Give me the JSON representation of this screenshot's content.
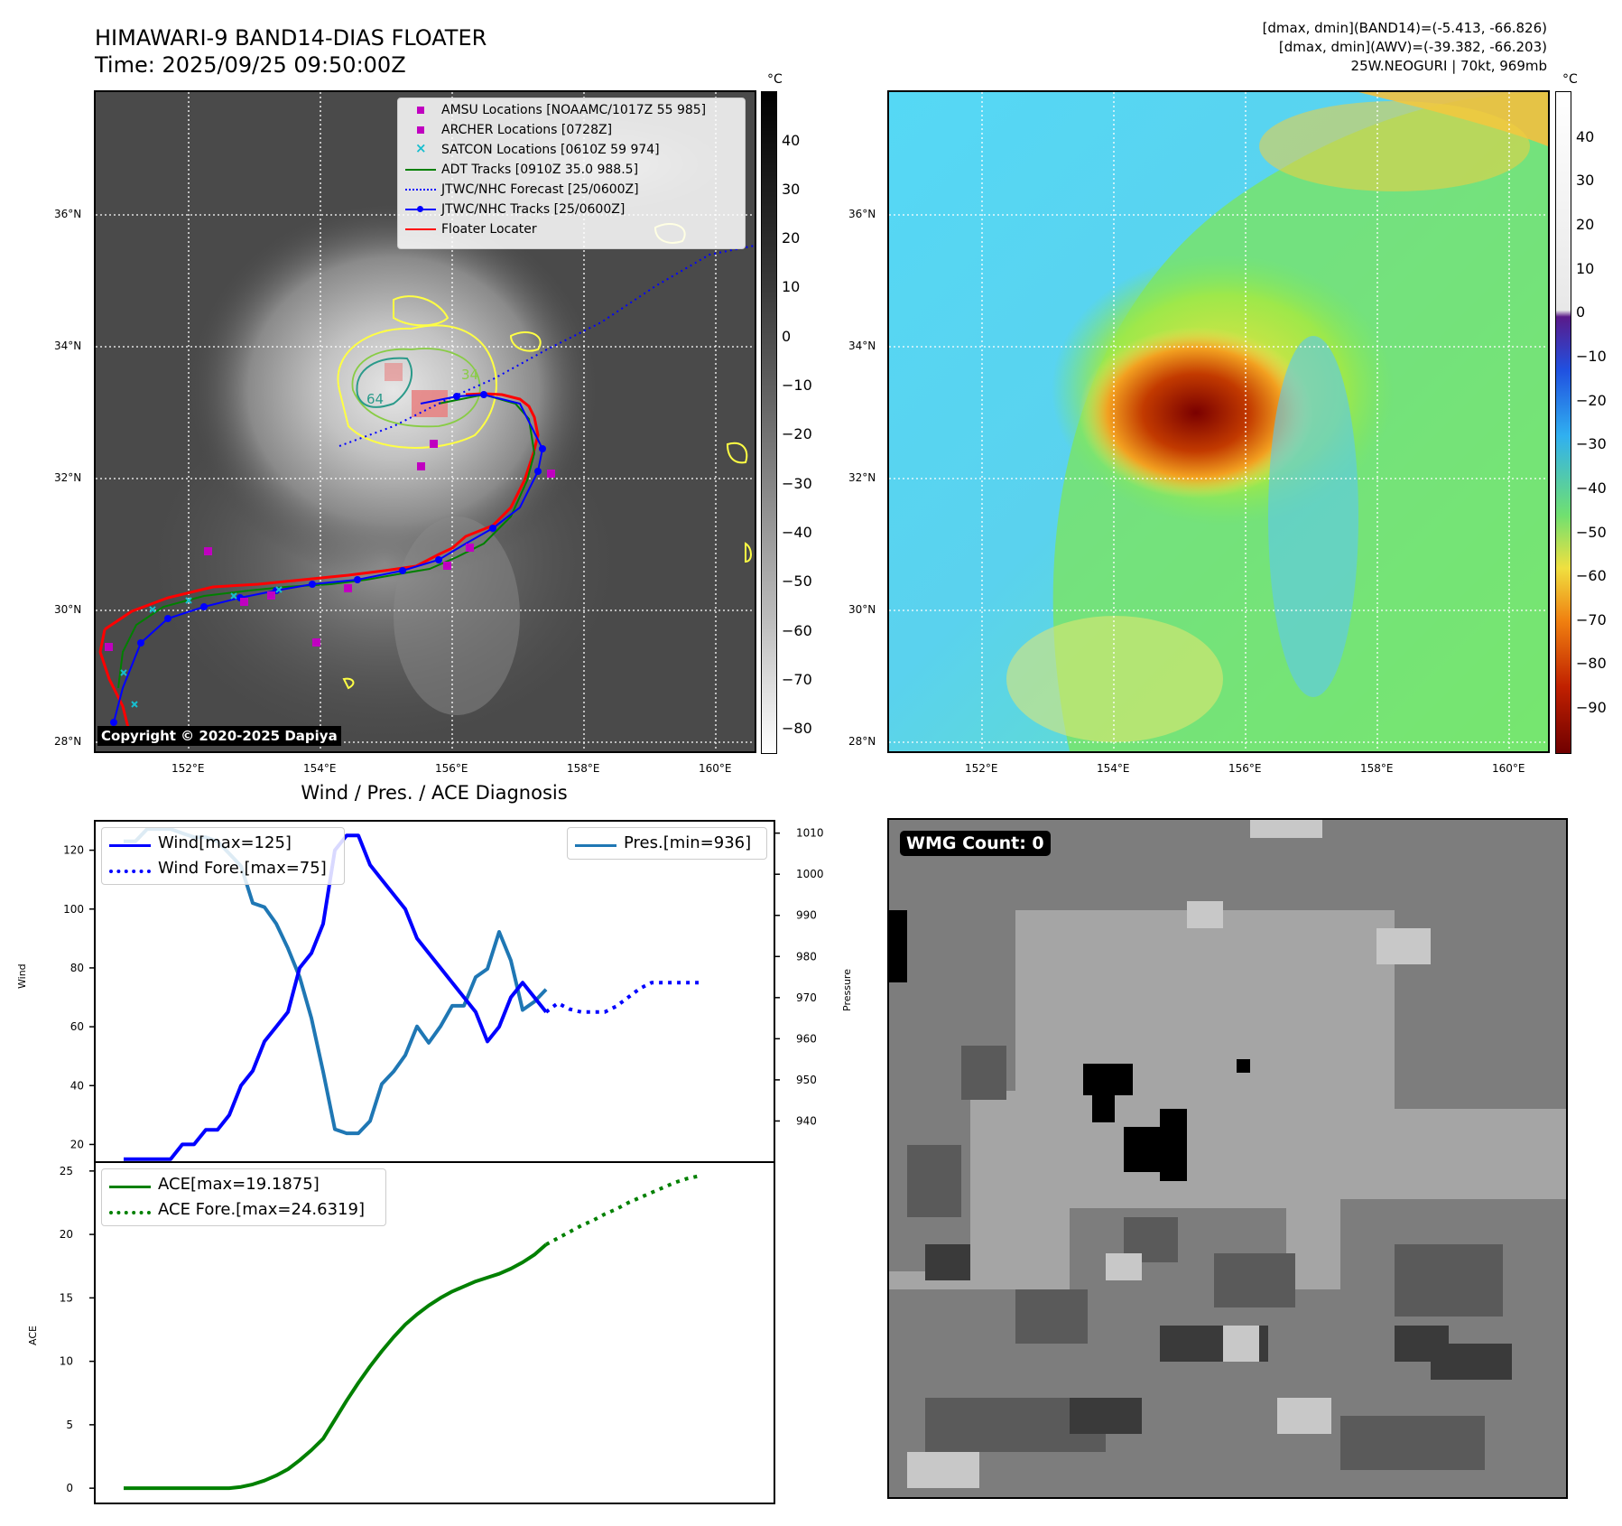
{
  "top_left": {
    "title_line1": "HIMAWARI-9 BAND14-DIAS FLOATER",
    "title_line2": "Time: 2025/09/25 09:50:00Z",
    "lat_ticks": [
      "36°N",
      "34°N",
      "32°N",
      "30°N",
      "28°N"
    ],
    "lon_ticks": [
      "152°E",
      "154°E",
      "156°E",
      "158°E",
      "160°E"
    ],
    "colorbar_unit": "°C",
    "colorbar_ticks": [
      "40",
      "30",
      "20",
      "10",
      "0",
      "−10",
      "−20",
      "−30",
      "−40",
      "−50",
      "−60",
      "−70",
      "−80"
    ],
    "copyright": "Copyright © 2020-2025 Dapiya",
    "contour_labels": [
      "64",
      "34"
    ],
    "legend": [
      {
        "label": "AMSU Locations [NOAAMC/1017Z 55 985]",
        "symbol": "square",
        "color": "#c000c0"
      },
      {
        "label": "ARCHER Locations [0728Z]",
        "symbol": "square",
        "color": "#c000c0"
      },
      {
        "label": "SATCON Locations [0610Z 59 974]",
        "symbol": "x",
        "color": "#17becf"
      },
      {
        "label": "ADT Tracks [0910Z 35.0 988.5]",
        "symbol": "line",
        "color": "#008000"
      },
      {
        "label": "JTWC/NHC Forecast [25/0600Z]",
        "symbol": "dotted",
        "color": "#0000ff"
      },
      {
        "label": "JTWC/NHC Tracks [25/0600Z]",
        "symbol": "line-dot",
        "color": "#0000ff"
      },
      {
        "label": "Floater Locater",
        "symbol": "line",
        "color": "#ff0000"
      }
    ]
  },
  "top_right": {
    "info_line1": "[dmax, dmin](BAND14)=(-5.413, -66.826)",
    "info_line2": "[dmax, dmin](AWV)=(-39.382, -66.203)",
    "info_line3": "25W.NEOGURI | 70kt, 969mb",
    "lat_ticks": [
      "36°N",
      "34°N",
      "32°N",
      "30°N",
      "28°N"
    ],
    "lon_ticks": [
      "152°E",
      "154°E",
      "156°E",
      "158°E",
      "160°E"
    ],
    "colorbar_unit": "°C",
    "colorbar_ticks": [
      "40",
      "30",
      "20",
      "10",
      "0",
      "−10",
      "−20",
      "−30",
      "−40",
      "−50",
      "−60",
      "−70",
      "−80",
      "−90"
    ]
  },
  "bottom_right": {
    "badge": "WMG Count: 0"
  },
  "chart_data": [
    {
      "type": "line",
      "title": "Wind / Pres. / ACE Diagnosis",
      "ylabel": "Wind",
      "ylabel2": "Pressure",
      "ylim": [
        14,
        130
      ],
      "ylim2": [
        930,
        1013
      ],
      "yticks": [
        "120",
        "100",
        "80",
        "60",
        "40",
        "20"
      ],
      "yticks2": [
        "1010",
        "1000",
        "990",
        "980",
        "970",
        "960",
        "950",
        "940"
      ],
      "series": [
        {
          "name": "Wind[max=125]",
          "color": "#0000ff",
          "style": "solid",
          "axis": "left",
          "x": [
            0,
            1,
            2,
            3,
            4,
            5,
            6,
            7,
            8,
            9,
            10,
            11,
            12,
            13,
            14,
            15,
            16,
            17,
            18,
            19,
            20,
            21,
            22,
            23,
            24,
            25,
            26,
            27,
            28,
            29,
            30,
            31,
            32,
            33,
            34,
            35,
            36
          ],
          "values": [
            15,
            15,
            15,
            15,
            15,
            20,
            20,
            25,
            25,
            30,
            40,
            45,
            55,
            60,
            65,
            80,
            85,
            95,
            120,
            125,
            125,
            115,
            110,
            105,
            100,
            90,
            85,
            80,
            75,
            70,
            65,
            55,
            60,
            70,
            75,
            70,
            65
          ]
        },
        {
          "name": "Wind Fore.[max=75]",
          "color": "#0000ff",
          "style": "dotted",
          "axis": "left",
          "x": [
            36,
            37,
            38,
            39,
            40,
            41,
            42,
            43,
            44,
            45,
            46,
            47,
            48,
            49
          ],
          "values": [
            65,
            68,
            66,
            65,
            65,
            65,
            67,
            70,
            73,
            75,
            75,
            75,
            75,
            75
          ]
        },
        {
          "name": "Pres.[min=936]",
          "color": "#1f77b4",
          "style": "solid",
          "axis": "right",
          "x": [
            0,
            1,
            2,
            3,
            4,
            5,
            6,
            7,
            8,
            9,
            10,
            11,
            12,
            13,
            14,
            15,
            16,
            17,
            18,
            19,
            20,
            21,
            22,
            23,
            24,
            25,
            26,
            27,
            28,
            29,
            30,
            31,
            32,
            33,
            34,
            35,
            36
          ],
          "values": [
            1008,
            1008,
            1011,
            1011,
            1011,
            1010,
            1009,
            1009,
            1008,
            1005,
            1002,
            993,
            992,
            988,
            982,
            975,
            965,
            952,
            938,
            937,
            937,
            940,
            949,
            952,
            956,
            963,
            959,
            963,
            968,
            968,
            975,
            977,
            986,
            979,
            967,
            969,
            972
          ]
        }
      ]
    },
    {
      "type": "line",
      "ylabel": "ACE",
      "ylim": [
        -1.2,
        25.7
      ],
      "yticks": [
        "25",
        "20",
        "15",
        "10",
        "5",
        "0"
      ],
      "series": [
        {
          "name": "ACE[max=19.1875]",
          "color": "#008000",
          "style": "solid",
          "x": [
            0,
            1,
            2,
            3,
            4,
            5,
            6,
            7,
            8,
            9,
            10,
            11,
            12,
            13,
            14,
            15,
            16,
            17,
            18,
            19,
            20,
            21,
            22,
            23,
            24,
            25,
            26,
            27,
            28,
            29,
            30,
            31,
            32,
            33,
            34,
            35,
            36
          ],
          "values": [
            0,
            0,
            0,
            0,
            0,
            0,
            0,
            0,
            0,
            0,
            0.1,
            0.3,
            0.6,
            1.0,
            1.5,
            2.2,
            3.0,
            3.9,
            5.4,
            6.9,
            8.3,
            9.6,
            10.8,
            11.9,
            12.9,
            13.7,
            14.4,
            15.0,
            15.5,
            15.9,
            16.3,
            16.6,
            16.9,
            17.3,
            17.8,
            18.4,
            19.2
          ]
        },
        {
          "name": "ACE Fore.[max=24.6319]",
          "color": "#008000",
          "style": "dotted",
          "x": [
            36,
            37,
            38,
            39,
            40,
            41,
            42,
            43,
            44,
            45,
            46,
            47,
            48,
            49
          ],
          "values": [
            19.2,
            19.7,
            20.2,
            20.7,
            21.1,
            21.6,
            22.0,
            22.5,
            22.9,
            23.3,
            23.7,
            24.1,
            24.4,
            24.6
          ]
        }
      ]
    }
  ]
}
